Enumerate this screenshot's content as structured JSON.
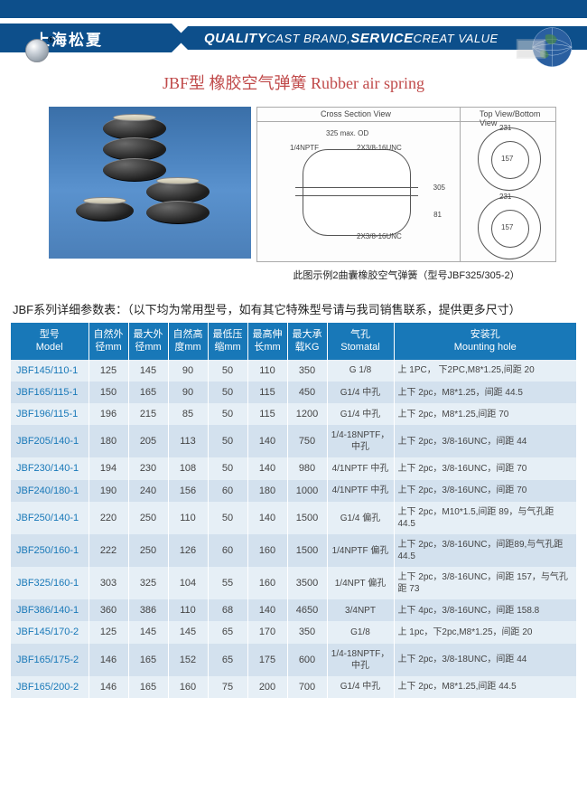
{
  "header": {
    "brand": "上海松夏",
    "slogan_q": "QUALITY",
    "slogan_c": " CAST BRAND,",
    "slogan_s": "SERVICE",
    "slogan_v": " CREAT VALUE"
  },
  "title": "JBF型 橡胶空气弹簧  Rubber air spring",
  "diagram": {
    "cross_label": "Cross Section View",
    "top_label": "Top View/Bottom View",
    "dim_od": "325 max. OD",
    "dim_npt": "1/4NPTF",
    "dim_unc1": "2X3/8-16UNC",
    "dim_unc2": "2X3/8-16UNC",
    "dim_h": "305",
    "dim_h2": "81",
    "dim_top1": "231",
    "dim_top2": "157",
    "dim_top3": "231",
    "dim_top4": "157",
    "caption": "此图示例2曲囊橡胶空气弹簧（型号JBF325/305-2）"
  },
  "table_caption": "JBF系列详细参数表：（以下均为常用型号，如有其它特殊型号请与我司销售联系，提供更多尺寸）",
  "columns": [
    {
      "cn": "型号",
      "en": "Model"
    },
    {
      "cn": "自然外径",
      "unit": "mm"
    },
    {
      "cn": "最大外径",
      "unit": "mm"
    },
    {
      "cn": "自然高度",
      "unit": "mm"
    },
    {
      "cn": "最低压缩",
      "unit": "mm"
    },
    {
      "cn": "最高伸长",
      "unit": "mm"
    },
    {
      "cn": "最大承载",
      "unit": "KG"
    },
    {
      "cn": "气孔",
      "en": "Stomatal"
    },
    {
      "cn": "安装孔",
      "en": "Mounting hole"
    }
  ],
  "rows": [
    [
      "JBF145/110-1",
      "125",
      "145",
      "90",
      "50",
      "110",
      "350",
      "G 1/8",
      "上 1PC， 下2PC,M8*1.25,间距 20"
    ],
    [
      "JBF165/115-1",
      "150",
      "165",
      "90",
      "50",
      "115",
      "450",
      "G1/4 中孔",
      "上下 2pc，M8*1.25，间距 44.5"
    ],
    [
      "JBF196/115-1",
      "196",
      "215",
      "85",
      "50",
      "115",
      "1200",
      "G1/4 中孔",
      "上下 2pc，M8*1.25,间距 70"
    ],
    [
      "JBF205/140-1",
      "180",
      "205",
      "113",
      "50",
      "140",
      "750",
      "1/4-18NPTF，中孔",
      "上下 2pc，3/8-16UNC，间距 44"
    ],
    [
      "JBF230/140-1",
      "194",
      "230",
      "108",
      "50",
      "140",
      "980",
      "4/1NPTF 中孔",
      "上下 2pc，3/8-16UNC，间距 70"
    ],
    [
      "JBF240/180-1",
      "190",
      "240",
      "156",
      "60",
      "180",
      "1000",
      "4/1NPTF 中孔",
      "上下 2pc，3/8-16UNC，间距 70"
    ],
    [
      "JBF250/140-1",
      "220",
      "250",
      "110",
      "50",
      "140",
      "1500",
      "G1/4 偏孔",
      "上下 2pc，M10*1.5,间距 89，与气孔距 44.5"
    ],
    [
      "JBF250/160-1",
      "222",
      "250",
      "126",
      "60",
      "160",
      "1500",
      "1/4NPTF 偏孔",
      "上下 2pc，3/8-16UNC，间距89,与气孔距44.5"
    ],
    [
      "JBF325/160-1",
      "303",
      "325",
      "104",
      "55",
      "160",
      "3500",
      "1/4NPT 偏孔",
      "上下 2pc，3/8-16UNC，间距 157，与气孔距 73"
    ],
    [
      "JBF386/140-1",
      "360",
      "386",
      "110",
      "68",
      "140",
      "4650",
      "3/4NPT",
      "上下 4pc，3/8-16UNC，间距 158.8"
    ],
    [
      "JBF145/170-2",
      "125",
      "145",
      "145",
      "65",
      "170",
      "350",
      "G1/8",
      "上 1pc，下2pc,M8*1.25，间距 20"
    ],
    [
      "JBF165/175-2",
      "146",
      "165",
      "152",
      "65",
      "175",
      "600",
      "1/4-18NPTF，中孔",
      "上下 2pc，3/8-18UNC，间距 44"
    ],
    [
      "JBF165/200-2",
      "146",
      "165",
      "160",
      "75",
      "200",
      "700",
      "G1/4 中孔",
      "上下 2pc，M8*1.25,间距 44.5"
    ]
  ],
  "colors": {
    "header_bg": "#0d4f8b",
    "th_bg": "#1878b8",
    "row_odd": "#e6eff6",
    "row_even": "#d3e1ee",
    "title_color": "#c04a4a"
  }
}
